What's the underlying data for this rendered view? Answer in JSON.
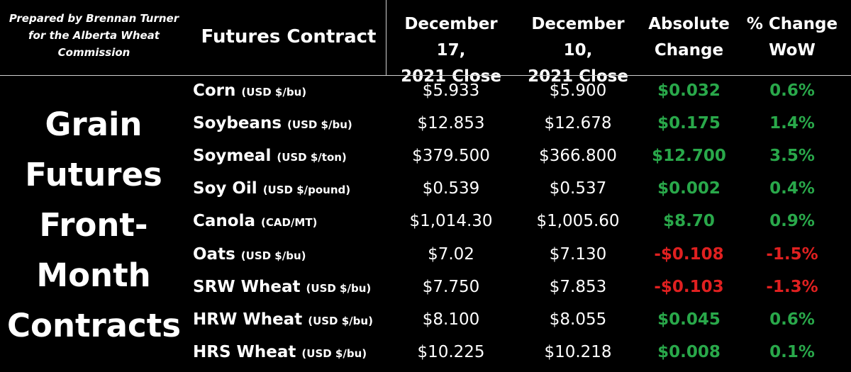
{
  "credit": [
    "Prepared by Brennan Turner",
    "for the Alberta Wheat",
    "Commission"
  ],
  "headers": {
    "contract": "Futures Contract",
    "dec17": [
      "December 17,",
      "2021 Close"
    ],
    "dec10": [
      "December 10,",
      "2021 Close"
    ],
    "abs": [
      "Absolute",
      "Change"
    ],
    "pct": [
      "% Change",
      "WoW"
    ]
  },
  "title": [
    "Grain",
    "Futures",
    "Front-",
    "Month",
    "Contracts"
  ],
  "colors": {
    "positive": "#29a84a",
    "negative": "#e02020",
    "background": "#000000"
  },
  "rows": [
    {
      "name": "Corn",
      "unit": "(USD $/bu)",
      "dec17": "$5.933",
      "dec10": "$5.900",
      "abs": "$0.032",
      "pct": "0.6%",
      "dir": "up"
    },
    {
      "name": "Soybeans",
      "unit": "(USD $/bu)",
      "dec17": "$12.853",
      "dec10": "$12.678",
      "abs": "$0.175",
      "pct": "1.4%",
      "dir": "up"
    },
    {
      "name": "Soymeal",
      "unit": "(USD $/ton)",
      "dec17": "$379.500",
      "dec10": "$366.800",
      "abs": "$12.700",
      "pct": "3.5%",
      "dir": "up"
    },
    {
      "name": "Soy Oil",
      "unit": "(USD $/pound)",
      "dec17": "$0.539",
      "dec10": "$0.537",
      "abs": "$0.002",
      "pct": "0.4%",
      "dir": "up"
    },
    {
      "name": "Canola",
      "unit": "(CAD/MT)",
      "dec17": "$1,014.30",
      "dec10": "$1,005.60",
      "abs": "$8.70",
      "pct": "0.9%",
      "dir": "up"
    },
    {
      "name": "Oats",
      "unit": "(USD $/bu)",
      "dec17": "$7.02",
      "dec10": "$7.130",
      "abs": "-$0.108",
      "pct": "-1.5%",
      "dir": "down"
    },
    {
      "name": "SRW Wheat",
      "unit": "(USD $/bu)",
      "dec17": "$7.750",
      "dec10": "$7.853",
      "abs": "-$0.103",
      "pct": "-1.3%",
      "dir": "down"
    },
    {
      "name": "HRW Wheat",
      "unit": "(USD $/bu)",
      "dec17": "$8.100",
      "dec10": "$8.055",
      "abs": "$0.045",
      "pct": "0.6%",
      "dir": "up"
    },
    {
      "name": "HRS Wheat",
      "unit": "(USD $/bu)",
      "dec17": "$10.225",
      "dec10": "$10.218",
      "abs": "$0.008",
      "pct": "0.1%",
      "dir": "up"
    }
  ]
}
